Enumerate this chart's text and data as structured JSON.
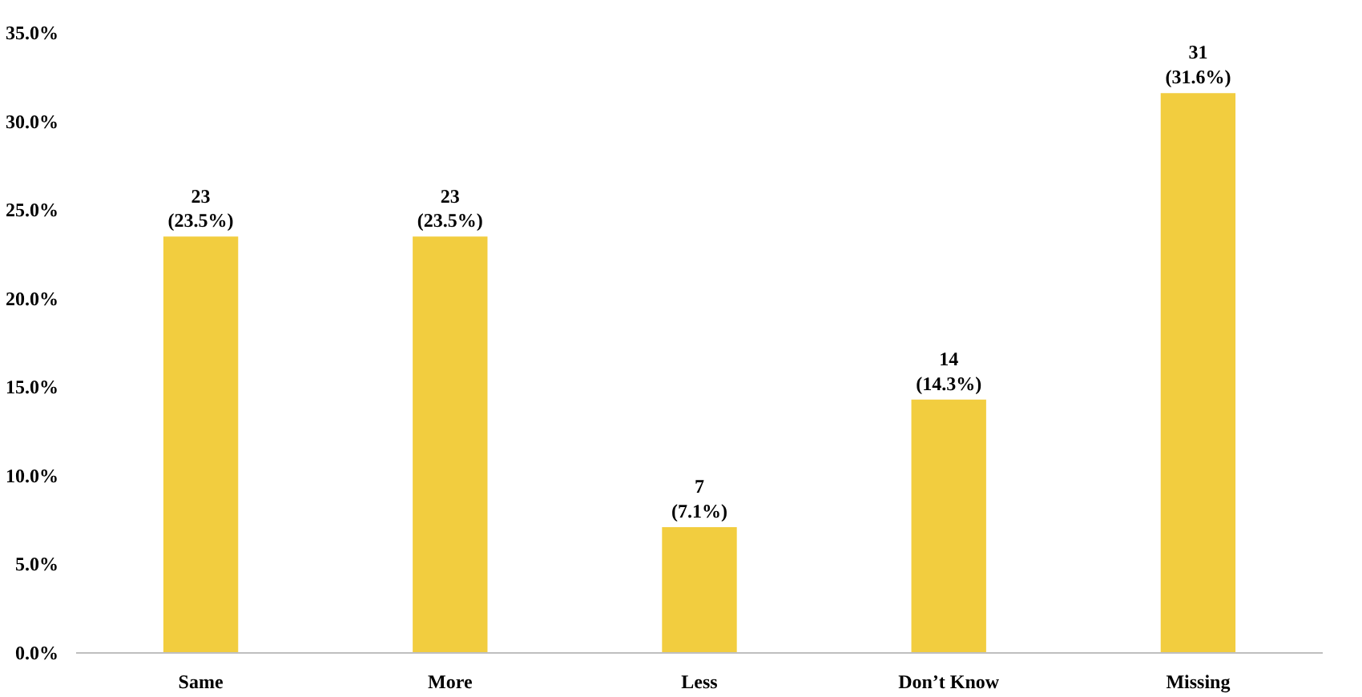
{
  "chart_data": {
    "type": "bar",
    "categories": [
      "Same",
      "More",
      "Less",
      "Don’t Know",
      "Missing"
    ],
    "values": [
      23.5,
      23.5,
      7.1,
      14.3,
      31.6
    ],
    "value_labels": [
      "23\n(23.5%)",
      "23\n(23.5%)",
      "7\n(7.1%)",
      "14\n(14.3%)",
      "31\n(31.6%)"
    ],
    "color": "#f2cd3f",
    "ylim": [
      0,
      35
    ],
    "yticks": [
      {
        "value": 0,
        "label": "0.0%"
      },
      {
        "value": 5,
        "label": "5.0%"
      },
      {
        "value": 10,
        "label": "10.0%"
      },
      {
        "value": 15,
        "label": "15.0%"
      },
      {
        "value": 20,
        "label": "20.0%"
      },
      {
        "value": 25,
        "label": "25.0%"
      },
      {
        "value": 30,
        "label": "30.0%"
      },
      {
        "value": 35,
        "label": "35.0%"
      }
    ],
    "grid": false
  }
}
